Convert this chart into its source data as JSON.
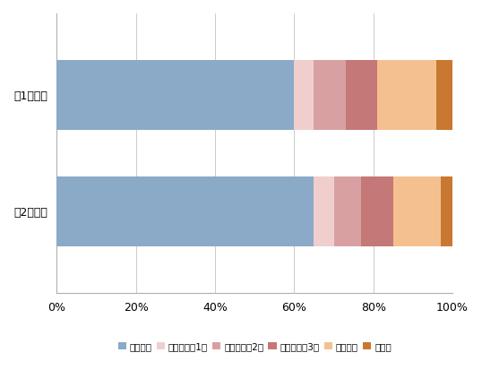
{
  "categories": [
    "第1次選抜",
    "第2次選抜"
  ],
  "series": [
    {
      "label": "学力検査",
      "values": [
        60,
        65
      ],
      "color": "#8aaac8"
    },
    {
      "label": "学習の記録1年",
      "values": [
        5,
        5
      ],
      "color": "#f0cece"
    },
    {
      "label": "学習の記録2年",
      "values": [
        8,
        7
      ],
      "color": "#d8a0a0"
    },
    {
      "label": "学習の記録3年",
      "values": [
        8,
        8
      ],
      "color": "#c47878"
    },
    {
      "label": "特別活動",
      "values": [
        15,
        12
      ],
      "color": "#f5c090"
    },
    {
      "label": "その他",
      "values": [
        4,
        3
      ],
      "color": "#c87830"
    }
  ],
  "xlim": [
    0,
    100
  ],
  "xticks": [
    0,
    20,
    40,
    60,
    80,
    100
  ],
  "xtick_labels": [
    "0%",
    "20%",
    "40%",
    "60%",
    "80%",
    "100%"
  ],
  "background_color": "#ffffff",
  "bar_height": 0.6,
  "legend_fontsize": 7.5,
  "tick_fontsize": 9,
  "label_fontsize": 9,
  "figsize": [
    5.38,
    4.32
  ],
  "dpi": 100
}
